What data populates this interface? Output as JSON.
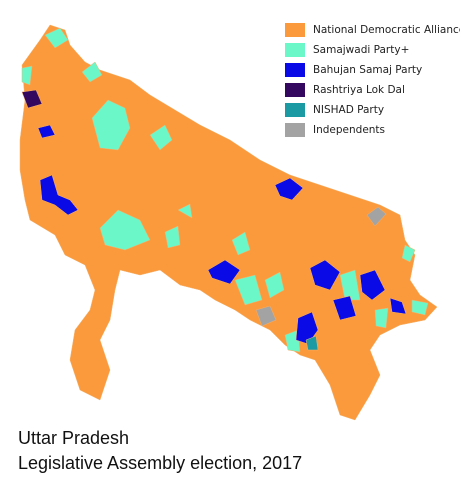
{
  "legend": [
    {
      "label": "National Democratic Alliance",
      "color": "#fb9a3c"
    },
    {
      "label": "Samajwadi Party+",
      "color": "#6cf7c9"
    },
    {
      "label": "Bahujan Samaj Party",
      "color": "#0a0ae6"
    },
    {
      "label": "Rashtriya Lok Dal",
      "color": "#33085e"
    },
    {
      "label": "NISHAD Party",
      "color": "#1c9aa3"
    },
    {
      "label": "Independents",
      "color": "#a3a3a3"
    }
  ],
  "caption": [
    "Uttar Pradesh",
    "Legislative Assembly election, 2017"
  ]
}
